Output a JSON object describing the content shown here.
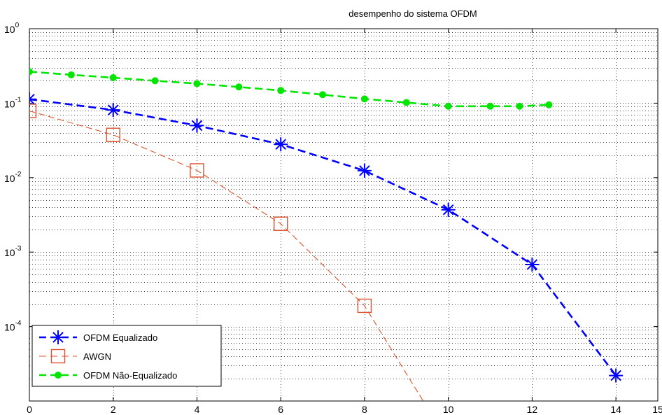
{
  "chart_data": {
    "type": "line",
    "title": "desempenho do sistema OFDM",
    "xlabel": "",
    "ylabel": "",
    "xlim": [
      0,
      15
    ],
    "ylim": [
      1e-05,
      1
    ],
    "yscale": "log",
    "grid": "major and minor, dotted",
    "legend_position": "bottom-left",
    "x_ticks": [
      0,
      2,
      4,
      6,
      8,
      10,
      12,
      14,
      15
    ],
    "y_tick_labels": [
      {
        "base": "10",
        "exp": "0",
        "value": 1
      },
      {
        "base": "10",
        "exp": "-1",
        "value": 0.1
      },
      {
        "base": "10",
        "exp": "-2",
        "value": 0.01
      },
      {
        "base": "10",
        "exp": "-3",
        "value": 0.001
      },
      {
        "base": "10",
        "exp": "-4",
        "value": 0.0001
      }
    ],
    "series": [
      {
        "name": "OFDM Equalizado",
        "color": "#0000ff",
        "line": "dashed-thick",
        "marker": "asterisk",
        "x": [
          0,
          2,
          4,
          6,
          8,
          10,
          12,
          14
        ],
        "y": [
          0.113,
          0.081,
          0.05,
          0.028,
          0.0124,
          0.0037,
          0.00068,
          2.2e-05
        ]
      },
      {
        "name": "AWGN",
        "color": "#e0522e",
        "line": "dashed-thin",
        "marker": "square",
        "x": [
          0,
          2,
          4,
          6,
          8,
          9.4
        ],
        "y": [
          0.0786,
          0.0375,
          0.0125,
          0.0024,
          0.00019,
          1e-05
        ],
        "marker_count": 5
      },
      {
        "name": "OFDM Não-Equalizado",
        "color": "#00e600",
        "line": "dashed-thick",
        "marker": "dot",
        "x": [
          0,
          1,
          2,
          3,
          4,
          5,
          6,
          7,
          8,
          9,
          10,
          11,
          11.7,
          12.4
        ],
        "y": [
          0.265,
          0.24,
          0.22,
          0.2,
          0.183,
          0.165,
          0.148,
          0.13,
          0.114,
          0.102,
          0.091,
          0.091,
          0.091,
          0.095
        ]
      }
    ]
  }
}
